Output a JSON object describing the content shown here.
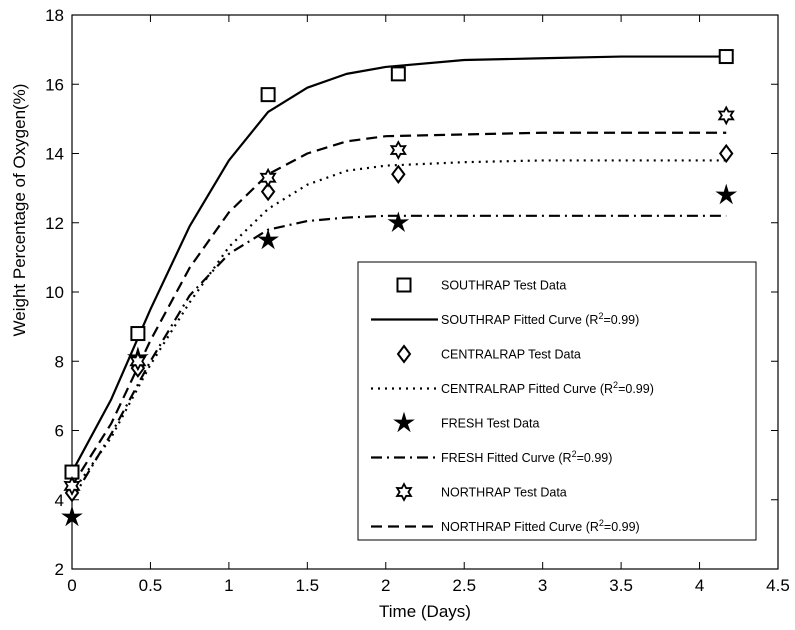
{
  "chart_data": {
    "type": "line",
    "xlabel": "Time (Days)",
    "ylabel": "Weight Percentage of Oxygen(%)",
    "xlim": [
      0,
      4.5
    ],
    "ylim": [
      2,
      18
    ],
    "xticks": [
      0,
      0.5,
      1,
      1.5,
      2,
      2.5,
      3,
      3.5,
      4,
      4.5
    ],
    "xtick_labels": [
      "0",
      "0.5",
      "1",
      "1.5",
      "2",
      "2.5",
      "3",
      "3.5",
      "4",
      "4.5"
    ],
    "yticks": [
      2,
      4,
      6,
      8,
      10,
      12,
      14,
      16,
      18
    ],
    "ytick_labels": [
      "2",
      "4",
      "6",
      "8",
      "10",
      "12",
      "14",
      "16",
      "18"
    ],
    "grid": false,
    "legend_position": "lower-right",
    "series": [
      {
        "name": "SOUTHRAP Test Data",
        "kind": "markers",
        "marker": "square",
        "x": [
          0,
          0.42,
          1.25,
          2.08,
          4.17
        ],
        "y": [
          4.8,
          8.8,
          15.7,
          16.3,
          16.8
        ]
      },
      {
        "name": "SOUTHRAP Fitted Curve (R²=0.99)",
        "kind": "line",
        "dash": "solid",
        "x": [
          0,
          0.25,
          0.5,
          0.75,
          1,
          1.25,
          1.5,
          1.75,
          2,
          2.5,
          3,
          3.5,
          4,
          4.17
        ],
        "y": [
          4.8,
          6.9,
          9.5,
          11.9,
          13.8,
          15.2,
          15.9,
          16.3,
          16.5,
          16.7,
          16.75,
          16.8,
          16.8,
          16.8
        ]
      },
      {
        "name": "CENTRALRAP Test Data",
        "kind": "markers",
        "marker": "diamond",
        "x": [
          0,
          0.42,
          1.25,
          2.08,
          4.17
        ],
        "y": [
          4.2,
          7.8,
          12.9,
          13.4,
          14.0
        ]
      },
      {
        "name": "CENTRALRAP Fitted Curve (R²=0.99)",
        "kind": "line",
        "dash": "dotted",
        "x": [
          0,
          0.25,
          0.5,
          0.75,
          1,
          1.25,
          1.5,
          1.75,
          2,
          2.5,
          3,
          3.5,
          4,
          4.17
        ],
        "y": [
          4.2,
          5.8,
          7.9,
          9.7,
          11.3,
          12.4,
          13.1,
          13.5,
          13.65,
          13.75,
          13.8,
          13.8,
          13.8,
          13.8
        ]
      },
      {
        "name": "FRESH Test Data",
        "kind": "markers",
        "marker": "star5",
        "x": [
          0,
          0.42,
          1.25,
          2.08,
          4.17
        ],
        "y": [
          3.5,
          8.1,
          11.5,
          12.0,
          12.8
        ]
      },
      {
        "name": "FRESH Fitted Curve (R²=0.99)",
        "kind": "line",
        "dash": "dashdot",
        "x": [
          0,
          0.25,
          0.5,
          0.75,
          1,
          1.25,
          1.5,
          1.75,
          2,
          2.5,
          3,
          3.5,
          4,
          4.17
        ],
        "y": [
          4.0,
          5.9,
          8.0,
          9.9,
          11.1,
          11.8,
          12.05,
          12.15,
          12.2,
          12.2,
          12.2,
          12.2,
          12.2,
          12.2
        ]
      },
      {
        "name": "NORTHRAP Test Data",
        "kind": "markers",
        "marker": "star6",
        "x": [
          0,
          0.42,
          1.25,
          2.08,
          4.17
        ],
        "y": [
          4.4,
          8.0,
          13.3,
          14.1,
          15.1
        ]
      },
      {
        "name": "NORTHRAP Fitted Curve (R²=0.99)",
        "kind": "line",
        "dash": "dashed",
        "x": [
          0,
          0.25,
          0.5,
          0.75,
          1,
          1.25,
          1.5,
          1.75,
          2,
          2.5,
          3,
          3.5,
          4,
          4.17
        ],
        "y": [
          4.4,
          6.2,
          8.6,
          10.7,
          12.3,
          13.4,
          14.0,
          14.35,
          14.5,
          14.55,
          14.6,
          14.6,
          14.6,
          14.6
        ]
      }
    ],
    "legend": [
      {
        "symbol": "square",
        "label_main": "SOUTHRAP Test Data",
        "label_sup": "",
        "label_tail": ""
      },
      {
        "symbol": "solid",
        "label_main": "SOUTHRAP Fitted Curve (R",
        "label_sup": "2",
        "label_tail": "=0.99)"
      },
      {
        "symbol": "diamond",
        "label_main": "CENTRALRAP Test Data",
        "label_sup": "",
        "label_tail": ""
      },
      {
        "symbol": "dotted",
        "label_main": "CENTRALRAP Fitted Curve (R",
        "label_sup": "2",
        "label_tail": "=0.99)"
      },
      {
        "symbol": "star5",
        "label_main": "FRESH Test Data",
        "label_sup": "",
        "label_tail": ""
      },
      {
        "symbol": "dashdot",
        "label_main": "FRESH Fitted Curve (R",
        "label_sup": "2",
        "label_tail": "=0.99)"
      },
      {
        "symbol": "star6",
        "label_main": "NORTHRAP Test Data",
        "label_sup": "",
        "label_tail": ""
      },
      {
        "symbol": "dashed",
        "label_main": "NORTHRAP Fitted Curve (R",
        "label_sup": "2",
        "label_tail": "=0.99)"
      }
    ]
  }
}
